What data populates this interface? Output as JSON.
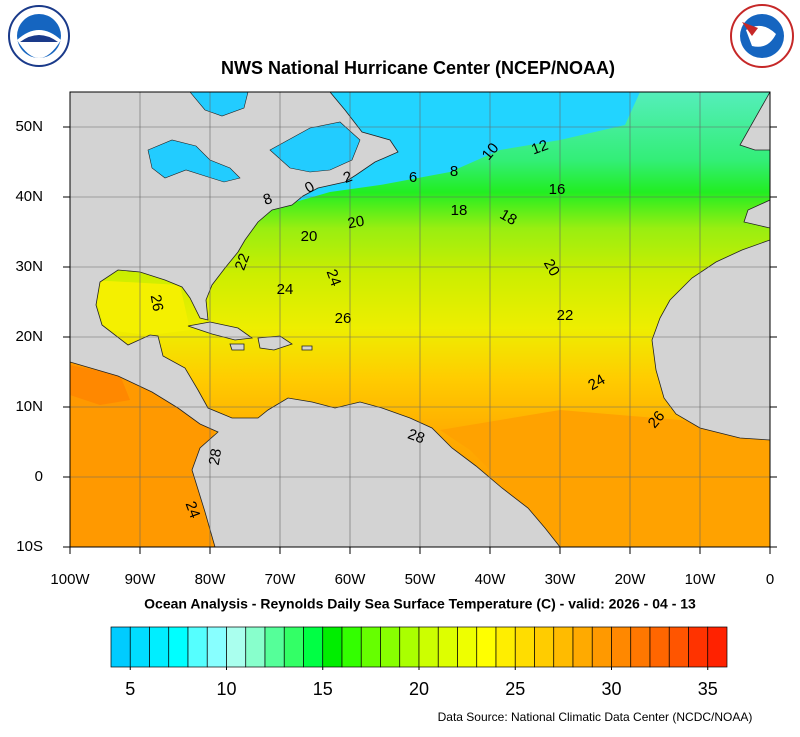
{
  "header": {
    "title": "NWS National Hurricane Center (NCEP/NOAA)"
  },
  "map": {
    "lon_ticks": [
      {
        "value": -100,
        "label": "100W"
      },
      {
        "value": -90,
        "label": "90W"
      },
      {
        "value": -80,
        "label": "80W"
      },
      {
        "value": -70,
        "label": "70W"
      },
      {
        "value": -60,
        "label": "60W"
      },
      {
        "value": -50,
        "label": "50W"
      },
      {
        "value": -40,
        "label": "40W"
      },
      {
        "value": -30,
        "label": "30W"
      },
      {
        "value": -20,
        "label": "20W"
      },
      {
        "value": -10,
        "label": "10W"
      },
      0
    ],
    "lat_ticks": [
      {
        "value": 50,
        "label": "50N"
      },
      {
        "value": 40,
        "label": "40N"
      },
      {
        "value": 30,
        "label": "30N"
      },
      {
        "value": 20,
        "label": "20N"
      },
      {
        "value": 10,
        "label": "10N"
      },
      0,
      {
        "value": -10,
        "label": "10S"
      }
    ],
    "lon_range": [
      -100,
      0
    ],
    "lat_range": [
      -10,
      55
    ],
    "contour_labels": [
      8,
      0,
      2,
      6,
      8,
      10,
      12,
      16,
      18,
      18,
      20,
      20,
      20,
      22,
      22,
      24,
      24,
      24,
      26,
      26,
      26,
      28,
      28,
      24
    ],
    "caption": "Ocean Analysis - Reynolds Daily Sea Surface Temperature (C) - valid: 2026 - 04 - 13"
  },
  "colorbar": {
    "range": [
      4,
      36
    ],
    "ticks": [
      5,
      10,
      15,
      20,
      25,
      30,
      35
    ],
    "colors": [
      "#00ccff",
      "#00ddff",
      "#00eeff",
      "#00ffff",
      "#55ffff",
      "#88ffff",
      "#aaffee",
      "#88ffcc",
      "#55ff99",
      "#33ff66",
      "#00ff44",
      "#00ee00",
      "#33ff00",
      "#66ff00",
      "#88ff00",
      "#aaff00",
      "#ccff00",
      "#ddff00",
      "#eeff00",
      "#ffff00",
      "#ffee00",
      "#ffdd00",
      "#ffcc00",
      "#ffbb00",
      "#ffaa00",
      "#ff9900",
      "#ff8800",
      "#ff7700",
      "#ff6600",
      "#ff5500",
      "#ff3300",
      "#ff2200"
    ]
  },
  "footer": {
    "source": "Data Source: National Climatic Data Center (NCDC/NOAA)"
  }
}
